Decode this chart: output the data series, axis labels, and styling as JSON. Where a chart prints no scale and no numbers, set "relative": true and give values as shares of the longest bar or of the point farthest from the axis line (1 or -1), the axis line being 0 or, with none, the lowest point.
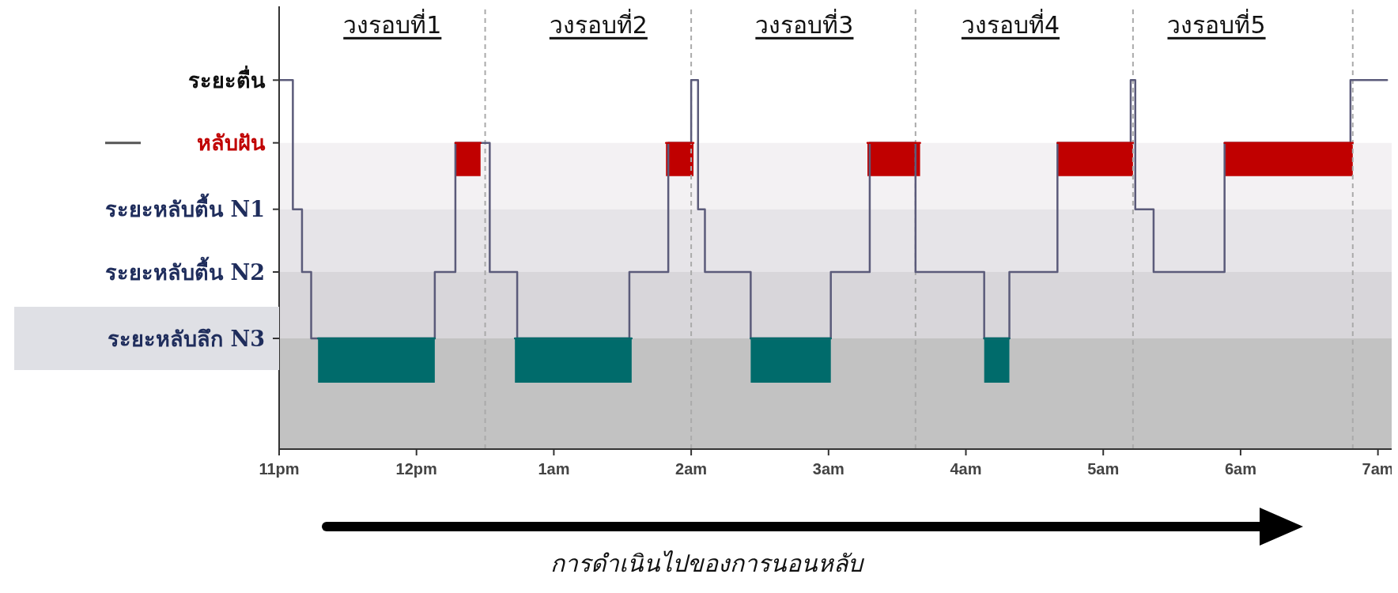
{
  "chart_data": {
    "type": "step",
    "relative": true,
    "xlabel": "การดำเนินไปของการนอนหลับ",
    "xlim": [
      "--01-01T23:00",
      "--01-02T07:06"
    ],
    "xticks": [
      {
        "value": "--01-01T23:00",
        "label": "11pm"
      },
      {
        "value": "--01-02T00:00",
        "label": "12pm"
      },
      {
        "value": "--01-02T01:00",
        "label": "1am"
      },
      {
        "value": "--01-02T02:00",
        "label": "2am"
      },
      {
        "value": "--01-02T03:00",
        "label": "3am"
      },
      {
        "value": "--01-02T04:00",
        "label": "4am"
      },
      {
        "value": "--01-02T05:00",
        "label": "5am"
      },
      {
        "value": "--01-02T06:00",
        "label": "6am"
      },
      {
        "value": "--01-02T07:00",
        "label": "7am"
      }
    ],
    "marker": "none",
    "series": [
      {
        "color": "#5b5b7a",
        "x": [
          "--01-01T23:00",
          "--01-01T23:06",
          "--01-01T23:10",
          "--01-01T23:14",
          "--01-02T00:08",
          "--01-02T00:17",
          "--01-02T00:32",
          "--01-02T00:44",
          "--01-02T01:33",
          "--01-02T01:50",
          "--01-02T02:00",
          "--01-02T02:03",
          "--01-02T02:06",
          "--01-02T02:26",
          "--01-02T03:01",
          "--01-02T03:18",
          "--01-02T03:38",
          "--01-02T04:08",
          "--01-02T04:19",
          "--01-02T04:40",
          "--01-02T05:12",
          "--01-02T05:14",
          "--01-02T05:22",
          "--01-02T05:53",
          "--01-02T06:48",
          "--01-02T07:04"
        ],
        "values": [
          1,
          0.65,
          0.48,
          0.3,
          0.48,
          0.83,
          0.48,
          0.3,
          0.48,
          0.83,
          1,
          0.65,
          0.48,
          0.3,
          0.48,
          0.83,
          0.48,
          0.3,
          0.48,
          0.83,
          1,
          0.65,
          0.48,
          0.83,
          1,
          1
        ]
      },
      {
        "type": "line",
        "color": "#c00000",
        "x": [
          "--01-02T00:17",
          "--01-02T00:28"
        ],
        "values": [
          0.83,
          0.83
        ],
        "lower": [
          0.74,
          0.74
        ],
        "upper": [
          0.83,
          0.83
        ]
      },
      {
        "type": "line",
        "color": "#c00000",
        "x": [
          "--01-02T01:49",
          "--01-02T02:01"
        ],
        "values": [
          0.83,
          0.83
        ],
        "lower": [
          0.74,
          0.74
        ],
        "upper": [
          0.83,
          0.83
        ]
      },
      {
        "type": "line",
        "color": "#c00000",
        "x": [
          "--01-02T03:17",
          "--01-02T03:40"
        ],
        "values": [
          0.83,
          0.83
        ],
        "lower": [
          0.74,
          0.74
        ],
        "upper": [
          0.83,
          0.83
        ]
      },
      {
        "type": "line",
        "color": "#c00000",
        "x": [
          "--01-02T04:40",
          "--01-02T05:13"
        ],
        "values": [
          0.83,
          0.83
        ],
        "lower": [
          0.74,
          0.74
        ],
        "upper": [
          0.83,
          0.83
        ]
      },
      {
        "type": "line",
        "color": "#c00000",
        "x": [
          "--01-02T05:53",
          "--01-02T06:49"
        ],
        "values": [
          0.83,
          0.83
        ],
        "lower": [
          0.74,
          0.74
        ],
        "upper": [
          0.83,
          0.83
        ]
      },
      {
        "type": "line",
        "color": "#006b6b",
        "x": [
          "--01-01T23:17",
          "--01-02T00:08"
        ],
        "values": [
          0.3,
          0.3
        ],
        "lower": [
          0.18,
          0.18
        ],
        "upper": [
          0.3,
          0.3
        ]
      },
      {
        "type": "line",
        "color": "#006b6b",
        "x": [
          "--01-02T00:43",
          "--01-02T01:34"
        ],
        "values": [
          0.3,
          0.3
        ],
        "lower": [
          0.18,
          0.18
        ],
        "upper": [
          0.3,
          0.3
        ]
      },
      {
        "type": "line",
        "color": "#006b6b",
        "x": [
          "--01-02T02:26",
          "--01-02T03:01"
        ],
        "values": [
          0.3,
          0.3
        ],
        "lower": [
          0.18,
          0.18
        ],
        "upper": [
          0.3,
          0.3
        ]
      },
      {
        "type": "line",
        "color": "#006b6b",
        "x": [
          "--01-02T04:08",
          "--01-02T04:19"
        ],
        "values": [
          0.3,
          0.3
        ],
        "lower": [
          0.18,
          0.18
        ],
        "upper": [
          0.3,
          0.3
        ]
      }
    ],
    "bands": [
      {
        "axis": "y",
        "from": 0.65,
        "to": 0.83,
        "color": "#f3f1f3"
      },
      {
        "axis": "y",
        "from": 0.48,
        "to": 0.65,
        "color": "#e6e4e8"
      },
      {
        "axis": "y",
        "from": 0.3,
        "to": 0.48,
        "color": "#d8d6da"
      },
      {
        "axis": "y",
        "from": 0,
        "to": 0.3,
        "color": "#c2c2c2"
      }
    ],
    "ref_lines": [
      {
        "axis": "x",
        "value": "--01-02T00:30",
        "color": "#aaaaaa",
        "line_style": "dashed"
      },
      {
        "axis": "x",
        "value": "--01-02T02:00",
        "color": "#aaaaaa",
        "line_style": "dashed"
      },
      {
        "axis": "x",
        "value": "--01-02T03:38",
        "color": "#aaaaaa",
        "line_style": "dashed"
      },
      {
        "axis": "x",
        "value": "--01-02T05:13",
        "color": "#aaaaaa",
        "line_style": "dashed"
      },
      {
        "axis": "x",
        "value": "--01-02T06:49",
        "color": "#aaaaaa",
        "line_style": "dashed"
      }
    ],
    "annotations": [
      "ระยะตื่น",
      "หลับฝัน",
      "ระยะหลับตื้น N1",
      "ระยะหลับตื้น N2",
      "ระยะหลับลึก N3",
      "วงรอบที่1",
      "วงรอบที่2",
      "วงรอบที่3",
      "วงรอบที่4",
      "วงรอบที่5"
    ]
  }
}
